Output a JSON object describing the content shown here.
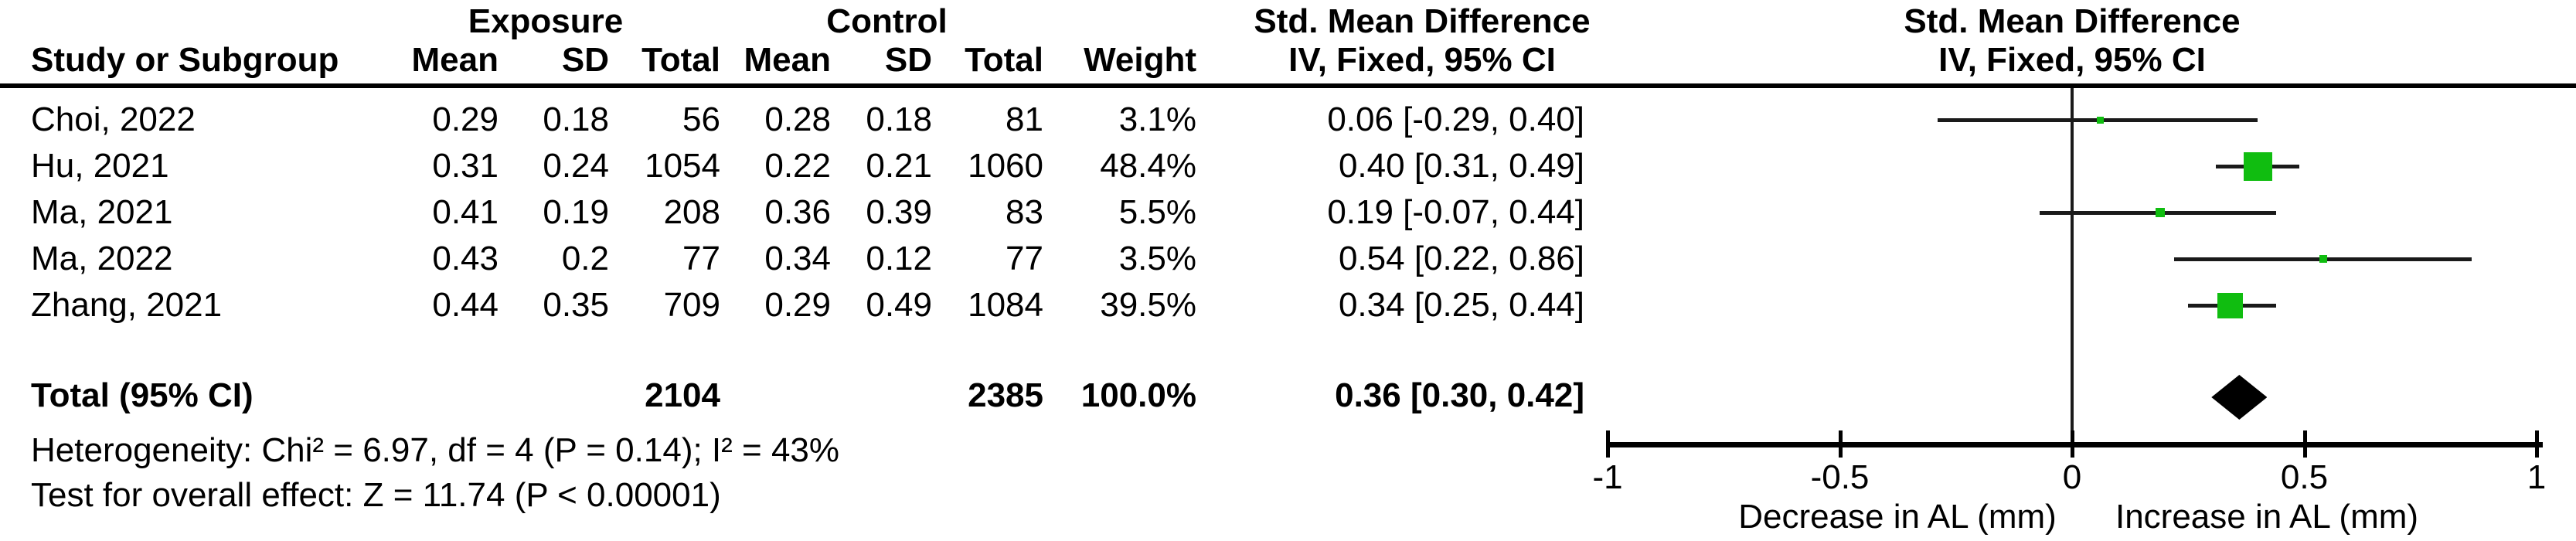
{
  "table": {
    "group1_header": "Exposure",
    "group2_header": "Control",
    "smd_header": "Std. Mean Difference",
    "method_header": "IV, Fixed, 95% CI",
    "columns": {
      "study": "Study or Subgroup",
      "mean": "Mean",
      "sd": "SD",
      "total": "Total",
      "weight": "Weight"
    },
    "rows": [
      {
        "study": "Choi, 2022",
        "exp_mean": "0.29",
        "exp_sd": "0.18",
        "exp_total": "56",
        "ctl_mean": "0.28",
        "ctl_sd": "0.18",
        "ctl_total": "81",
        "weight": "3.1%",
        "ci_text": "0.06 [-0.29, 0.40]"
      },
      {
        "study": "Hu, 2021",
        "exp_mean": "0.31",
        "exp_sd": "0.24",
        "exp_total": "1054",
        "ctl_mean": "0.22",
        "ctl_sd": "0.21",
        "ctl_total": "1060",
        "weight": "48.4%",
        "ci_text": "0.40 [0.31, 0.49]"
      },
      {
        "study": "Ma, 2021",
        "exp_mean": "0.41",
        "exp_sd": "0.19",
        "exp_total": "208",
        "ctl_mean": "0.36",
        "ctl_sd": "0.39",
        "ctl_total": "83",
        "weight": "5.5%",
        "ci_text": "0.19 [-0.07, 0.44]"
      },
      {
        "study": "Ma, 2022",
        "exp_mean": "0.43",
        "exp_sd": "0.2",
        "exp_total": "77",
        "ctl_mean": "0.34",
        "ctl_sd": "0.12",
        "ctl_total": "77",
        "weight": "3.5%",
        "ci_text": "0.54 [0.22, 0.86]"
      },
      {
        "study": "Zhang, 2021",
        "exp_mean": "0.44",
        "exp_sd": "0.35",
        "exp_total": "709",
        "ctl_mean": "0.29",
        "ctl_sd": "0.49",
        "ctl_total": "1084",
        "weight": "39.5%",
        "ci_text": "0.34 [0.25, 0.44]"
      }
    ],
    "total_row": {
      "label": "Total (95% CI)",
      "exp_total": "2104",
      "ctl_total": "2385",
      "weight": "100.0%",
      "ci_text": "0.36 [0.30, 0.42]"
    },
    "heterogeneity": "Heterogeneity: Chi² = 6.97, df = 4 (P = 0.14); I² = 43%",
    "overall_effect": "Test for overall effect: Z = 11.74 (P < 0.00001)"
  },
  "chart_data": {
    "type": "forest",
    "effect_measure": "Std. Mean Difference",
    "model": "IV, Fixed, 95% CI",
    "marker_color": "#10bd10",
    "summary_color": "#000000",
    "studies": [
      {
        "name": "Choi, 2022",
        "est": 0.06,
        "lo": -0.29,
        "hi": 0.4,
        "weight_pct": 3.1
      },
      {
        "name": "Hu, 2021",
        "est": 0.4,
        "lo": 0.31,
        "hi": 0.49,
        "weight_pct": 48.4
      },
      {
        "name": "Ma, 2021",
        "est": 0.19,
        "lo": -0.07,
        "hi": 0.44,
        "weight_pct": 5.5
      },
      {
        "name": "Ma, 2022",
        "est": 0.54,
        "lo": 0.22,
        "hi": 0.86,
        "weight_pct": 3.5
      },
      {
        "name": "Zhang, 2021",
        "est": 0.34,
        "lo": 0.25,
        "hi": 0.44,
        "weight_pct": 39.5
      }
    ],
    "total": {
      "est": 0.36,
      "lo": 0.3,
      "hi": 0.42,
      "weight_pct": 100.0
    },
    "axis": {
      "min": -1,
      "max": 1,
      "ticks": [
        -1,
        -0.5,
        0,
        0.5,
        1
      ],
      "tick_labels": [
        "-1",
        "-0.5",
        "0",
        "0.5",
        "1"
      ],
      "left_caption": "Decrease in AL (mm)",
      "right_caption": "Increase in AL (mm)"
    }
  }
}
